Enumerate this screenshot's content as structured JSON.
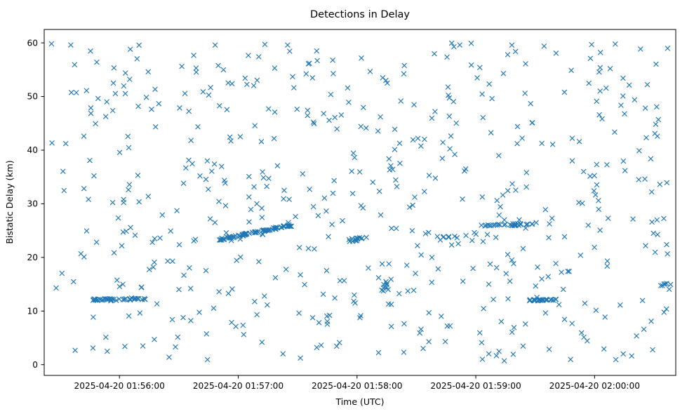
{
  "chart_data": {
    "type": "scatter",
    "title": "Detections in Delay",
    "xlabel": "Time (UTC)",
    "ylabel": "Bistatic Delay (km)",
    "marker": "x",
    "marker_color": "#1f77b4",
    "grid": false,
    "legend": "none",
    "x_axis": {
      "kind": "time-utc",
      "date": "2025-04-20",
      "visible_start": "2025-04-20 01:55:22",
      "visible_end": "2025-04-20 02:00:41",
      "t_origin": "2025-04-20 01:55:20",
      "tlim_seconds": [
        2,
        321
      ]
    },
    "ylim": [
      -2,
      62.5
    ],
    "y_ticks": [
      {
        "value": 0,
        "label": "0"
      },
      {
        "value": 10,
        "label": "10"
      },
      {
        "value": 20,
        "label": "20"
      },
      {
        "value": 30,
        "label": "30"
      },
      {
        "value": 40,
        "label": "40"
      },
      {
        "value": 50,
        "label": "50"
      },
      {
        "value": 60,
        "label": "60"
      }
    ],
    "x_ticks": [
      {
        "t": 40,
        "label": "2025-04-20 01:56:00"
      },
      {
        "t": 100,
        "label": "2025-04-20 01:57:00"
      },
      {
        "t": 160,
        "label": "2025-04-20 01:58:00"
      },
      {
        "t": 220,
        "label": "2025-04-20 01:59:00"
      },
      {
        "t": 280,
        "label": "2025-04-20 02:00:00"
      }
    ],
    "background_scatter": {
      "description": "uniform clutter detections across the whole window",
      "count": 560,
      "t_range_seconds": [
        5,
        318
      ],
      "y_range_km": [
        0.5,
        60
      ],
      "seed": 42
    },
    "tracks": [
      {
        "name": "streak-0156-12km",
        "t_start": 27,
        "t_end": 53,
        "y_start": 12.1,
        "y_end": 12.3,
        "count": 42,
        "t_jitter": 1.5,
        "y_jitter": 0.22
      },
      {
        "name": "track-0157-rising",
        "t_start": 90,
        "t_end": 127,
        "y_start": 23.3,
        "y_end": 26.0,
        "count": 80,
        "t_jitter": 1.0,
        "y_jitter": 0.15
      },
      {
        "name": "streak-0158-23km",
        "t_start": 155,
        "t_end": 168,
        "y_start": 23.2,
        "y_end": 23.6,
        "count": 14,
        "t_jitter": 1.5,
        "y_jitter": 0.25
      },
      {
        "name": "cluster-0158-15km",
        "t_start": 172,
        "t_end": 178,
        "y_start": 13.8,
        "y_end": 16.3,
        "count": 9,
        "t_jitter": 1.0,
        "y_jitter": 0.6
      },
      {
        "name": "cluster-0158-24km",
        "t_start": 200,
        "t_end": 220,
        "y_start": 23.4,
        "y_end": 24.3,
        "count": 10,
        "t_jitter": 2.0,
        "y_jitter": 0.45
      },
      {
        "name": "streak-0159-26km",
        "t_start": 222,
        "t_end": 250,
        "y_start": 25.9,
        "y_end": 26.2,
        "count": 30,
        "t_jitter": 1.5,
        "y_jitter": 0.2
      },
      {
        "name": "streak-0159-12km",
        "t_start": 246,
        "t_end": 262,
        "y_start": 12.0,
        "y_end": 12.1,
        "count": 26,
        "t_jitter": 1.2,
        "y_jitter": 0.12
      },
      {
        "name": "cluster-0200-15km",
        "t_start": 313,
        "t_end": 318,
        "y_start": 14.8,
        "y_end": 15.1,
        "count": 5,
        "t_jitter": 0.8,
        "y_jitter": 0.15
      }
    ]
  }
}
